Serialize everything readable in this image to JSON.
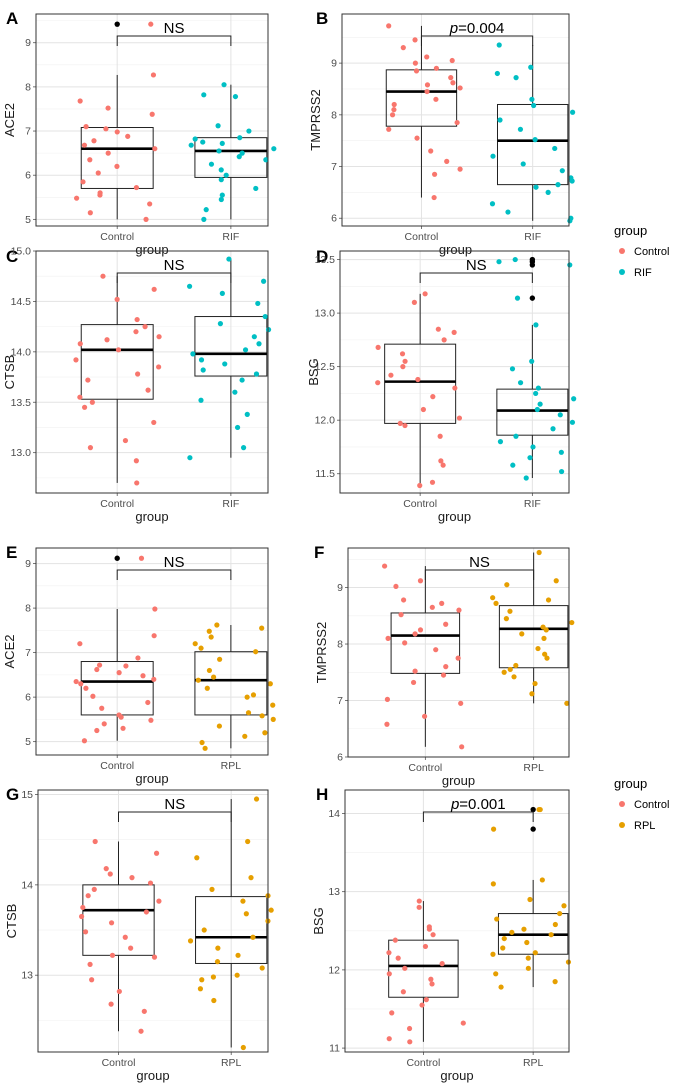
{
  "colors": {
    "control": "#F8766D",
    "rif": "#00BFC4",
    "rpl": "#E69F00",
    "outlier": "#000000"
  },
  "legends": [
    {
      "title": "group",
      "items": [
        "Control",
        "RIF"
      ],
      "item_colors": [
        "control",
        "rif"
      ]
    },
    {
      "title": "group",
      "items": [
        "Control",
        "RPL"
      ],
      "item_colors": [
        "control",
        "rpl"
      ]
    }
  ],
  "chart_data": [
    {
      "label": "A",
      "type": "boxplot",
      "ylabel": "ACE2",
      "xlabel": "group",
      "categories": [
        "Control",
        "RIF"
      ],
      "ylim": [
        4.85,
        9.65
      ],
      "yticks": [
        5,
        6,
        7,
        8,
        9
      ],
      "significance": {
        "text": "NS"
      },
      "boxes": [
        {
          "q1": 5.7,
          "median": 6.6,
          "q3": 7.08,
          "whisker_low": 5.0,
          "whisker_high": 8.27
        },
        {
          "q1": 5.95,
          "median": 6.55,
          "q3": 6.85,
          "whisker_low": 5.0,
          "whisker_high": 8.05
        }
      ],
      "outliers": [
        [
          9.42
        ],
        []
      ],
      "points": [
        [
          9.42,
          8.27,
          7.68,
          7.52,
          7.38,
          7.1,
          7.05,
          6.98,
          6.88,
          6.78,
          6.68,
          6.6,
          6.5,
          6.35,
          6.2,
          6.05,
          5.85,
          5.72,
          5.6,
          5.55,
          5.48,
          5.35,
          5.15,
          5.0
        ],
        [
          8.05,
          7.82,
          7.78,
          7.12,
          7.0,
          6.85,
          6.82,
          6.75,
          6.72,
          6.68,
          6.6,
          6.55,
          6.5,
          6.42,
          6.35,
          6.25,
          6.12,
          6.0,
          5.9,
          5.7,
          5.55,
          5.45,
          5.22,
          5.0
        ]
      ]
    },
    {
      "label": "B",
      "type": "boxplot",
      "ylabel": "TMPRSS2",
      "xlabel": "group",
      "categories": [
        "Control",
        "RIF"
      ],
      "ylim": [
        5.85,
        9.95
      ],
      "yticks": [
        6,
        7,
        8,
        9
      ],
      "significance": {
        "text": "p=0.004"
      },
      "boxes": [
        {
          "q1": 7.78,
          "median": 8.45,
          "q3": 8.87,
          "whisker_low": 6.4,
          "whisker_high": 9.72
        },
        {
          "q1": 6.65,
          "median": 7.5,
          "q3": 8.2,
          "whisker_low": 5.95,
          "whisker_high": 9.35
        }
      ],
      "outliers": [
        [],
        []
      ],
      "points": [
        [
          9.72,
          9.45,
          9.3,
          9.12,
          9.05,
          9.0,
          8.9,
          8.85,
          8.72,
          8.62,
          8.58,
          8.52,
          8.45,
          8.3,
          8.2,
          8.1,
          8.0,
          7.85,
          7.72,
          7.55,
          7.3,
          7.1,
          6.95,
          6.85,
          6.4
        ],
        [
          9.35,
          8.92,
          8.8,
          8.72,
          8.3,
          8.18,
          8.05,
          7.9,
          7.72,
          7.52,
          7.35,
          7.2,
          7.05,
          6.92,
          6.78,
          6.72,
          6.65,
          6.6,
          6.5,
          6.28,
          6.12,
          6.0,
          5.95
        ]
      ]
    },
    {
      "label": "C",
      "type": "boxplot",
      "ylabel": "CTSB",
      "xlabel": "group",
      "categories": [
        "Control",
        "RIF"
      ],
      "ylim": [
        12.6,
        15.0
      ],
      "yticks": [
        13.0,
        13.5,
        14.0,
        14.5,
        15.0
      ],
      "significance": {
        "text": "NS"
      },
      "boxes": [
        {
          "q1": 13.53,
          "median": 14.02,
          "q3": 14.27,
          "whisker_low": 12.7,
          "whisker_high": 14.75
        },
        {
          "q1": 13.76,
          "median": 13.98,
          "q3": 14.35,
          "whisker_low": 12.95,
          "whisker_high": 14.92
        }
      ],
      "outliers": [
        [],
        []
      ],
      "points": [
        [
          14.75,
          14.62,
          14.52,
          14.32,
          14.25,
          14.2,
          14.15,
          14.12,
          14.08,
          14.02,
          13.92,
          13.85,
          13.78,
          13.72,
          13.62,
          13.55,
          13.5,
          13.45,
          13.3,
          13.12,
          13.05,
          12.92,
          12.7
        ],
        [
          14.92,
          14.7,
          14.65,
          14.58,
          14.48,
          14.35,
          14.28,
          14.22,
          14.15,
          14.08,
          14.02,
          13.98,
          13.92,
          13.88,
          13.82,
          13.78,
          13.72,
          13.6,
          13.52,
          13.38,
          13.25,
          13.05,
          12.95
        ]
      ]
    },
    {
      "label": "D",
      "type": "boxplot",
      "ylabel": "BSG",
      "xlabel": "group",
      "categories": [
        "Control",
        "RIF"
      ],
      "ylim": [
        11.32,
        13.58
      ],
      "yticks": [
        11.5,
        12.0,
        12.5,
        13.0,
        13.5
      ],
      "significance": {
        "text": "NS"
      },
      "boxes": [
        {
          "q1": 11.97,
          "median": 12.36,
          "q3": 12.71,
          "whisker_low": 11.39,
          "whisker_high": 13.18
        },
        {
          "q1": 11.86,
          "median": 12.09,
          "q3": 12.29,
          "whisker_low": 11.46,
          "whisker_high": 12.89
        }
      ],
      "outliers": [
        [],
        [
          13.5,
          13.48,
          13.45,
          13.14
        ]
      ],
      "points": [
        [
          13.18,
          13.1,
          12.85,
          12.82,
          12.75,
          12.68,
          12.62,
          12.55,
          12.5,
          12.42,
          12.38,
          12.35,
          12.3,
          12.22,
          12.1,
          12.02,
          11.97,
          11.95,
          11.85,
          11.62,
          11.58,
          11.42,
          11.39
        ],
        [
          13.5,
          13.48,
          13.45,
          13.14,
          12.89,
          12.55,
          12.48,
          12.35,
          12.3,
          12.25,
          12.2,
          12.15,
          12.1,
          12.05,
          11.98,
          11.92,
          11.85,
          11.8,
          11.75,
          11.7,
          11.65,
          11.58,
          11.52,
          11.46
        ]
      ]
    },
    {
      "label": "E",
      "type": "boxplot",
      "ylabel": "ACE2",
      "xlabel": "group",
      "categories": [
        "Control",
        "RPL"
      ],
      "ylim": [
        4.7,
        9.35
      ],
      "yticks": [
        5,
        6,
        7,
        8,
        9
      ],
      "significance": {
        "text": "NS"
      },
      "boxes": [
        {
          "q1": 5.6,
          "median": 6.35,
          "q3": 6.8,
          "whisker_low": 5.02,
          "whisker_high": 7.98
        },
        {
          "q1": 5.6,
          "median": 6.38,
          "q3": 7.02,
          "whisker_low": 4.85,
          "whisker_high": 7.62
        }
      ],
      "outliers": [
        [
          9.12
        ],
        []
      ],
      "points": [
        [
          9.12,
          7.98,
          7.38,
          7.2,
          6.88,
          6.72,
          6.7,
          6.62,
          6.55,
          6.48,
          6.4,
          6.35,
          6.3,
          6.2,
          6.02,
          5.88,
          5.75,
          5.6,
          5.55,
          5.48,
          5.4,
          5.3,
          5.25,
          5.02
        ],
        [
          7.62,
          7.55,
          7.48,
          7.35,
          7.2,
          7.1,
          7.02,
          6.85,
          6.6,
          6.45,
          6.38,
          6.3,
          6.2,
          6.05,
          6.0,
          5.82,
          5.65,
          5.58,
          5.5,
          5.35,
          5.2,
          5.12,
          4.98,
          4.85
        ]
      ]
    },
    {
      "label": "F",
      "type": "boxplot",
      "ylabel": "TMPRSS2",
      "xlabel": "group",
      "categories": [
        "Control",
        "RPL"
      ],
      "ylim": [
        6.0,
        9.7
      ],
      "yticks": [
        6,
        7,
        8,
        9
      ],
      "significance": {
        "text": "NS"
      },
      "boxes": [
        {
          "q1": 7.48,
          "median": 8.15,
          "q3": 8.55,
          "whisker_low": 6.18,
          "whisker_high": 9.38
        },
        {
          "q1": 7.58,
          "median": 8.27,
          "q3": 8.68,
          "whisker_low": 6.95,
          "whisker_high": 9.62
        }
      ],
      "outliers": [
        [],
        []
      ],
      "points": [
        [
          9.38,
          9.12,
          9.02,
          8.78,
          8.72,
          8.65,
          8.6,
          8.52,
          8.35,
          8.25,
          8.18,
          8.1,
          8.02,
          7.9,
          7.75,
          7.6,
          7.52,
          7.45,
          7.32,
          7.02,
          6.95,
          6.72,
          6.58,
          6.18
        ],
        [
          9.62,
          9.12,
          9.05,
          8.82,
          8.78,
          8.72,
          8.58,
          8.45,
          8.38,
          8.3,
          8.25,
          8.18,
          8.1,
          7.92,
          7.82,
          7.75,
          7.62,
          7.55,
          7.5,
          7.42,
          7.3,
          7.12,
          6.95
        ]
      ]
    },
    {
      "label": "G",
      "type": "boxplot",
      "ylabel": "CTSB",
      "xlabel": "group",
      "categories": [
        "Control",
        "RPL"
      ],
      "ylim": [
        12.15,
        15.05
      ],
      "yticks": [
        13,
        14,
        15
      ],
      "significance": {
        "text": "NS"
      },
      "boxes": [
        {
          "q1": 13.22,
          "median": 13.72,
          "q3": 14.0,
          "whisker_low": 12.38,
          "whisker_high": 14.48
        },
        {
          "q1": 13.13,
          "median": 13.42,
          "q3": 13.87,
          "whisker_low": 12.2,
          "whisker_high": 14.95
        }
      ],
      "outliers": [
        [],
        []
      ],
      "points": [
        [
          14.48,
          14.35,
          14.18,
          14.12,
          14.08,
          14.02,
          13.95,
          13.88,
          13.82,
          13.75,
          13.7,
          13.65,
          13.58,
          13.48,
          13.42,
          13.3,
          13.22,
          13.2,
          13.12,
          12.95,
          12.82,
          12.68,
          12.6,
          12.38
        ],
        [
          14.95,
          14.48,
          14.3,
          14.08,
          13.95,
          13.88,
          13.82,
          13.72,
          13.68,
          13.6,
          13.5,
          13.42,
          13.38,
          13.3,
          13.22,
          13.15,
          13.08,
          13.0,
          12.98,
          12.95,
          12.85,
          12.72,
          12.2
        ]
      ]
    },
    {
      "label": "H",
      "type": "boxplot",
      "ylabel": "BSG",
      "xlabel": "group",
      "categories": [
        "Control",
        "RPL"
      ],
      "ylim": [
        10.95,
        14.3
      ],
      "yticks": [
        11,
        12,
        13,
        14
      ],
      "significance": {
        "text": "p=0.001"
      },
      "boxes": [
        {
          "q1": 11.65,
          "median": 12.05,
          "q3": 12.38,
          "whisker_low": 11.08,
          "whisker_high": 12.88
        },
        {
          "q1": 12.2,
          "median": 12.45,
          "q3": 12.72,
          "whisker_low": 11.78,
          "whisker_high": 13.15
        }
      ],
      "outliers": [
        [],
        [
          14.05,
          13.8
        ]
      ],
      "points": [
        [
          12.88,
          12.8,
          12.55,
          12.52,
          12.45,
          12.38,
          12.3,
          12.22,
          12.15,
          12.08,
          12.02,
          11.95,
          11.88,
          11.82,
          11.72,
          11.62,
          11.55,
          11.45,
          11.32,
          11.25,
          11.12,
          11.08
        ],
        [
          14.05,
          14.05,
          13.8,
          13.15,
          13.1,
          12.9,
          12.82,
          12.72,
          12.65,
          12.58,
          12.52,
          12.48,
          12.45,
          12.4,
          12.35,
          12.28,
          12.22,
          12.2,
          12.15,
          12.1,
          12.02,
          11.95,
          11.85,
          11.78
        ]
      ]
    }
  ]
}
